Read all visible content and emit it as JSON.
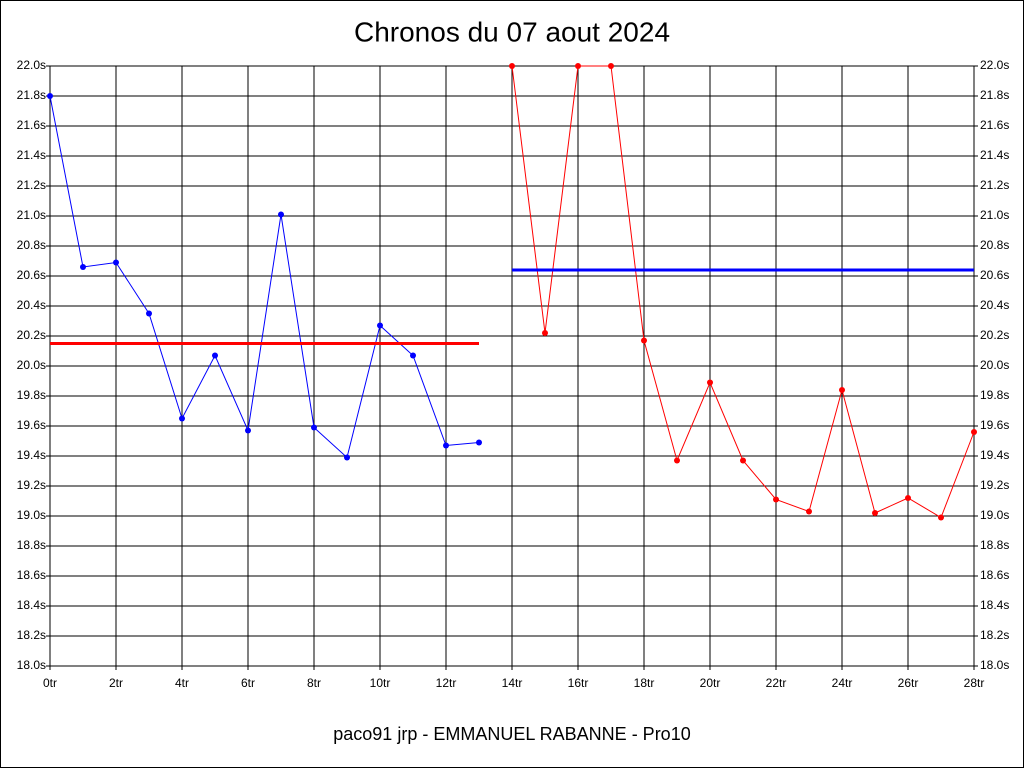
{
  "chart_data": {
    "type": "line",
    "title": "Chronos du 07 aout 2024",
    "xlabel": "paco91 jrp - EMMANUEL RABANNE - Pro10",
    "grid": true,
    "xlim": [
      0,
      28
    ],
    "xticks": [
      {
        "value": 0,
        "label": "0tr"
      },
      {
        "value": 2,
        "label": "2tr"
      },
      {
        "value": 4,
        "label": "4tr"
      },
      {
        "value": 6,
        "label": "6tr"
      },
      {
        "value": 8,
        "label": "8tr"
      },
      {
        "value": 10,
        "label": "10tr"
      },
      {
        "value": 12,
        "label": "12tr"
      },
      {
        "value": 14,
        "label": "14tr"
      },
      {
        "value": 16,
        "label": "16tr"
      },
      {
        "value": 18,
        "label": "18tr"
      },
      {
        "value": 20,
        "label": "20tr"
      },
      {
        "value": 22,
        "label": "22tr"
      },
      {
        "value": 24,
        "label": "24tr"
      },
      {
        "value": 26,
        "label": "26tr"
      },
      {
        "value": 28,
        "label": "28tr"
      }
    ],
    "ylim": [
      18.0,
      22.0
    ],
    "yticks": [
      {
        "value": 18.0,
        "label": "18.0s"
      },
      {
        "value": 18.2,
        "label": "18.2s"
      },
      {
        "value": 18.4,
        "label": "18.4s"
      },
      {
        "value": 18.6,
        "label": "18.6s"
      },
      {
        "value": 18.8,
        "label": "18.8s"
      },
      {
        "value": 19.0,
        "label": "19.0s"
      },
      {
        "value": 19.2,
        "label": "19.2s"
      },
      {
        "value": 19.4,
        "label": "19.4s"
      },
      {
        "value": 19.6,
        "label": "19.6s"
      },
      {
        "value": 19.8,
        "label": "19.8s"
      },
      {
        "value": 20.0,
        "label": "20.0s"
      },
      {
        "value": 20.2,
        "label": "20.2s"
      },
      {
        "value": 20.4,
        "label": "20.4s"
      },
      {
        "value": 20.6,
        "label": "20.6s"
      },
      {
        "value": 20.8,
        "label": "20.8s"
      },
      {
        "value": 21.0,
        "label": "21.0s"
      },
      {
        "value": 21.2,
        "label": "21.2s"
      },
      {
        "value": 21.4,
        "label": "21.4s"
      },
      {
        "value": 21.6,
        "label": "21.6s"
      },
      {
        "value": 21.8,
        "label": "21.8s"
      },
      {
        "value": 22.0,
        "label": "22.0s"
      }
    ],
    "y2lim": [
      18.0,
      22.0
    ],
    "y2ticks": [
      {
        "value": 18.0,
        "label": "18.0s"
      },
      {
        "value": 18.2,
        "label": "18.2s"
      },
      {
        "value": 18.4,
        "label": "18.4s"
      },
      {
        "value": 18.6,
        "label": "18.6s"
      },
      {
        "value": 18.8,
        "label": "18.8s"
      },
      {
        "value": 19.0,
        "label": "19.0s"
      },
      {
        "value": 19.2,
        "label": "19.2s"
      },
      {
        "value": 19.4,
        "label": "19.4s"
      },
      {
        "value": 19.6,
        "label": "19.6s"
      },
      {
        "value": 19.8,
        "label": "19.8s"
      },
      {
        "value": 20.0,
        "label": "20.0s"
      },
      {
        "value": 20.2,
        "label": "20.2s"
      },
      {
        "value": 20.4,
        "label": "20.4s"
      },
      {
        "value": 20.6,
        "label": "20.6s"
      },
      {
        "value": 20.8,
        "label": "20.8s"
      },
      {
        "value": 21.0,
        "label": "21.0s"
      },
      {
        "value": 21.2,
        "label": "21.2s"
      },
      {
        "value": 21.4,
        "label": "21.4s"
      },
      {
        "value": 21.6,
        "label": "21.6s"
      },
      {
        "value": 21.8,
        "label": "21.8s"
      },
      {
        "value": 22.0,
        "label": "22.0s"
      }
    ],
    "series": [
      {
        "color": "#0000ff",
        "markers": true,
        "x": [
          0,
          1,
          2,
          3,
          4,
          5,
          6,
          7,
          8,
          9,
          10,
          11,
          12,
          13
        ],
        "values": [
          21.8,
          20.66,
          20.69,
          20.35,
          19.65,
          20.07,
          19.57,
          21.01,
          19.59,
          19.39,
          20.27,
          20.07,
          19.47,
          19.49
        ]
      },
      {
        "color": "#ff0000",
        "markers": true,
        "x": [
          14,
          15,
          16,
          17,
          18,
          19,
          20,
          21,
          22,
          23,
          24,
          25,
          26,
          27,
          28
        ],
        "values": [
          22.0,
          20.22,
          22.0,
          22.0,
          20.17,
          19.37,
          19.89,
          19.37,
          19.11,
          19.03,
          19.84,
          19.02,
          19.12,
          18.99,
          19.56
        ]
      },
      {
        "color": "#ff0000",
        "markers": false,
        "x": [
          0,
          13
        ],
        "values": [
          20.15,
          20.15
        ]
      },
      {
        "color": "#0000ff",
        "markers": false,
        "x": [
          14,
          28
        ],
        "values": [
          20.64,
          20.64
        ]
      }
    ]
  }
}
